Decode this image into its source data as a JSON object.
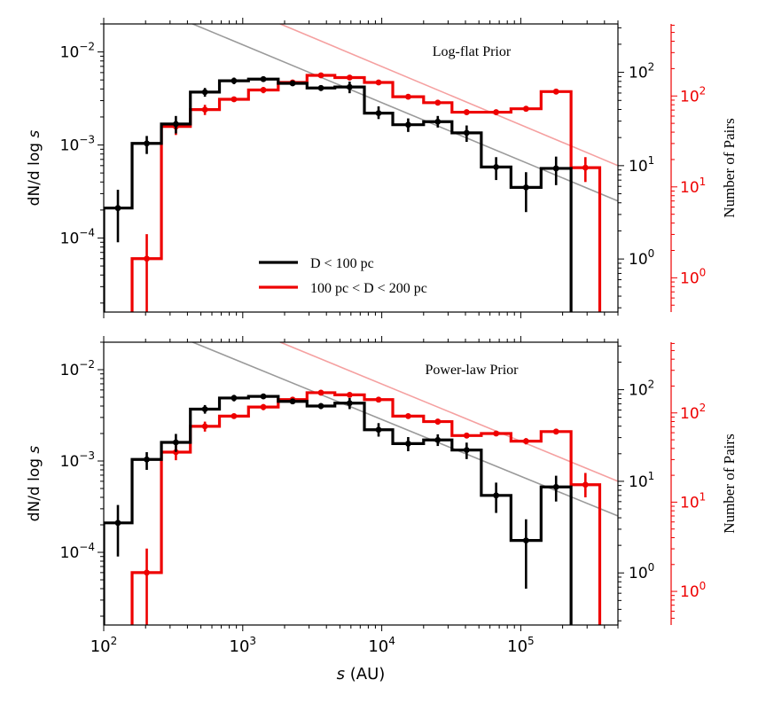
{
  "chart_data": [
    {
      "type": "step",
      "panel": "top",
      "annotation": "Log-flat Prior",
      "xlabel": "s (AU)",
      "ylabel": "dN/d log s",
      "y2label": "Number of Pairs",
      "xscale": "log",
      "yscale": "log",
      "xlim": [
        100,
        500000
      ],
      "ylim": [
        1.6e-05,
        0.02
      ],
      "legend": {
        "position": "lower-center",
        "entries": [
          "D < 100 pc",
          "100 pc < D < 200 pc"
        ]
      },
      "right_axis_black": {
        "ticks": [
          1,
          10,
          100
        ],
        "tick_labels": [
          "10^0",
          "10^1",
          "10^2"
        ]
      },
      "right_axis_red": {
        "ticks": [
          1,
          10,
          100
        ],
        "tick_labels": [
          "10^0",
          "10^1",
          "10^2"
        ]
      },
      "series": [
        {
          "name": "D < 100 pc",
          "color": "#000000",
          "edges": [
            100,
            160,
            260,
            420,
            680,
            1100,
            1800,
            2900,
            4600,
            7500,
            12000,
            20000,
            32000,
            52000,
            85000,
            140000,
            230000
          ],
          "values": [
            0.00021,
            0.00104,
            0.00168,
            0.0037,
            0.0049,
            0.0051,
            0.0046,
            0.0041,
            0.0042,
            0.0022,
            0.00165,
            0.00178,
            0.00135,
            0.00058,
            0.00035,
            0.00056
          ],
          "err_lo": [
            9e-05,
            0.0008,
            0.00133,
            0.0033,
            0.0045,
            0.0048,
            0.0043,
            0.0038,
            0.0036,
            0.0019,
            0.00138,
            0.00154,
            0.00108,
            0.00042,
            0.00019,
            0.00037
          ],
          "err_hi": [
            0.00033,
            0.00125,
            0.00205,
            0.0041,
            0.0053,
            0.0054,
            0.0049,
            0.0044,
            0.0048,
            0.0026,
            0.00193,
            0.00205,
            0.00162,
            0.00074,
            0.00051,
            0.00075
          ]
        },
        {
          "name": "100 pc < D < 200 pc",
          "color": "#ee0000",
          "edges": [
            160,
            260,
            420,
            680,
            1100,
            1800,
            2900,
            4600,
            7500,
            12000,
            20000,
            32000,
            52000,
            85000,
            140000,
            230000,
            370000
          ],
          "values": [
            6e-05,
            0.00158,
            0.0024,
            0.0031,
            0.0039,
            0.0047,
            0.0056,
            0.0053,
            0.0047,
            0.0033,
            0.00285,
            0.00225,
            0.00225,
            0.00245,
            0.00375,
            0.00057
          ],
          "err_lo": [
            1.6e-05,
            0.00128,
            0.0021,
            0.0029,
            0.0036,
            0.0044,
            0.0053,
            0.0051,
            0.0045,
            0.0031,
            0.0027,
            0.00212,
            0.00215,
            0.00232,
            0.0036,
            0.0004
          ],
          "err_hi": [
            0.00011,
            0.00182,
            0.0027,
            0.0033,
            0.0042,
            0.005,
            0.0059,
            0.0056,
            0.0049,
            0.0035,
            0.003,
            0.00238,
            0.00235,
            0.00258,
            0.0039,
            0.00074
          ]
        }
      ],
      "trend_lines": [
        {
          "name": "black-trend",
          "color": "#9a9a9a",
          "x": [
            100,
            500000
          ],
          "y": [
            0.05,
            0.00025
          ]
        },
        {
          "name": "red-trend",
          "color": "#f5a0a0",
          "x": [
            100,
            500000
          ],
          "y": [
            0.125,
            0.0006
          ]
        }
      ]
    },
    {
      "type": "step",
      "panel": "bottom",
      "annotation": "Power-law Prior",
      "xlabel": "s (AU)",
      "ylabel": "dN/d log s",
      "y2label": "Number of Pairs",
      "xscale": "log",
      "yscale": "log",
      "xlim": [
        100,
        500000
      ],
      "ylim": [
        1.6e-05,
        0.02
      ],
      "right_axis_black": {
        "ticks": [
          1,
          10,
          100
        ],
        "tick_labels": [
          "10^0",
          "10^1",
          "10^2"
        ]
      },
      "right_axis_red": {
        "ticks": [
          1,
          10,
          100
        ],
        "tick_labels": [
          "10^0",
          "10^1",
          "10^2"
        ]
      },
      "series": [
        {
          "name": "D < 100 pc",
          "color": "#000000",
          "edges": [
            100,
            160,
            260,
            420,
            680,
            1100,
            1800,
            2900,
            4600,
            7500,
            12000,
            20000,
            32000,
            52000,
            85000,
            140000,
            230000
          ],
          "values": [
            0.00021,
            0.00104,
            0.0016,
            0.0037,
            0.0049,
            0.0051,
            0.0045,
            0.004,
            0.0043,
            0.0022,
            0.00155,
            0.0017,
            0.00132,
            0.00042,
            0.000135,
            0.00052
          ],
          "err_lo": [
            9e-05,
            0.0008,
            0.00126,
            0.0033,
            0.0045,
            0.0048,
            0.0042,
            0.0037,
            0.0037,
            0.00185,
            0.00128,
            0.00146,
            0.00105,
            0.00027,
            4e-05,
            0.00036
          ],
          "err_hi": [
            0.00033,
            0.00125,
            0.00198,
            0.0041,
            0.0053,
            0.0054,
            0.0048,
            0.0043,
            0.0049,
            0.0026,
            0.00183,
            0.00196,
            0.00159,
            0.00058,
            0.00023,
            0.00069
          ]
        },
        {
          "name": "100 pc < D < 200 pc",
          "color": "#ee0000",
          "edges": [
            160,
            260,
            420,
            680,
            1100,
            1800,
            2900,
            4600,
            7500,
            12000,
            20000,
            32000,
            52000,
            85000,
            140000,
            230000,
            370000
          ],
          "values": [
            6e-05,
            0.00125,
            0.0024,
            0.0031,
            0.0039,
            0.0047,
            0.0056,
            0.0053,
            0.0047,
            0.0031,
            0.0027,
            0.0019,
            0.002,
            0.00165,
            0.0021,
            0.00055
          ],
          "err_lo": [
            1.6e-05,
            0.00102,
            0.0021,
            0.0029,
            0.0036,
            0.0044,
            0.0053,
            0.0051,
            0.0045,
            0.0029,
            0.0025,
            0.00178,
            0.00188,
            0.00152,
            0.00196,
            0.0004
          ],
          "err_hi": [
            0.00011,
            0.0015,
            0.0027,
            0.0033,
            0.0042,
            0.005,
            0.0059,
            0.0056,
            0.0049,
            0.0033,
            0.0029,
            0.00202,
            0.00212,
            0.00178,
            0.00224,
            0.00074
          ]
        }
      ],
      "trend_lines": [
        {
          "name": "black-trend",
          "color": "#9a9a9a",
          "x": [
            100,
            500000
          ],
          "y": [
            0.05,
            0.00025
          ]
        },
        {
          "name": "red-trend",
          "color": "#f5a0a0",
          "x": [
            100,
            500000
          ],
          "y": [
            0.125,
            0.0006
          ]
        }
      ]
    }
  ],
  "axes_text": {
    "ylabel_top": "dN/d log s",
    "ylabel_bottom": "dN/d log s",
    "y2label_top": "Number of Pairs",
    "y2label_bottom": "Number of Pairs",
    "xlabel": "s (AU)",
    "x_ticks": [
      "10^2",
      "10^3",
      "10^4",
      "10^5"
    ],
    "y_ticks": [
      "10^-2",
      "10^-3",
      "10^-4"
    ]
  }
}
